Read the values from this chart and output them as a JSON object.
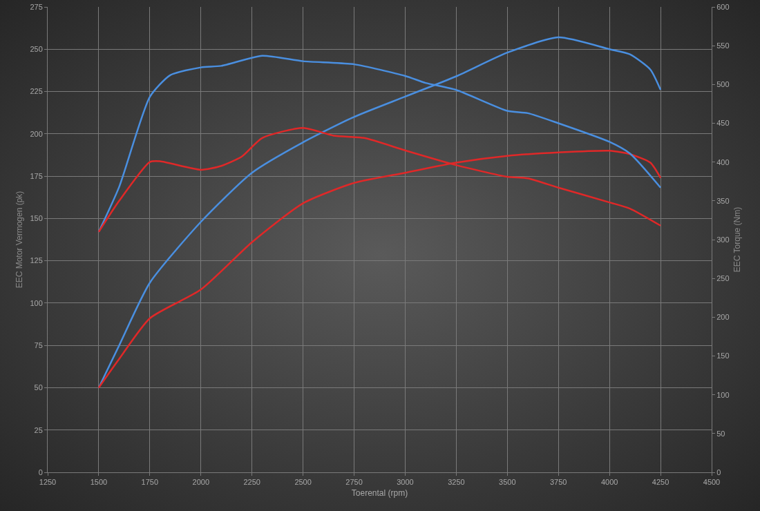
{
  "chart_data": {
    "type": "line",
    "xlabel": "Toerental (rpm)",
    "ylabel": "EEC Motor Vermogen (pk)",
    "y2label": "EEC Torque (Nm)",
    "xlim": [
      1250,
      4500
    ],
    "xticks": [
      1250,
      1500,
      1750,
      2000,
      2250,
      2500,
      2750,
      3000,
      3250,
      3500,
      3750,
      4000,
      4250,
      4500
    ],
    "ylim": [
      0,
      275
    ],
    "yticks": [
      0,
      25,
      50,
      75,
      100,
      125,
      150,
      175,
      200,
      225,
      250,
      275
    ],
    "y2lim": [
      0,
      600
    ],
    "y2ticks": [
      0,
      50,
      100,
      150,
      200,
      250,
      300,
      350,
      400,
      450,
      500,
      550,
      600
    ],
    "grid": true,
    "marker": "none",
    "line_style": "solid",
    "series": [
      {
        "color": "#4a8fe0",
        "x": [
          1500,
          1600,
          1750,
          2000,
          2250,
          2500,
          2750,
          3000,
          3250,
          3500,
          3750,
          4000,
          4100,
          4200,
          4250
        ],
        "values": [
          50,
          75,
          112,
          148,
          177,
          195,
          210,
          222,
          234,
          248,
          257,
          250,
          247,
          238,
          226
        ]
      },
      {
        "color": "#e02828",
        "x": [
          1500,
          1600,
          1750,
          2000,
          2250,
          2500,
          2750,
          3000,
          3250,
          3500,
          3750,
          4000,
          4100,
          4200,
          4250
        ],
        "values": [
          50,
          67,
          91,
          108,
          136,
          159,
          171,
          177,
          183,
          187,
          189,
          190,
          188,
          183,
          174
        ]
      },
      {
        "color": "#4a8fe0",
        "axis": "y2",
        "x": [
          1500,
          1600,
          1750,
          1850,
          2000,
          2100,
          2300,
          2500,
          2750,
          3000,
          3100,
          3250,
          3500,
          3600,
          3750,
          4000,
          4100,
          4250
        ],
        "values": [
          310,
          368,
          484,
          512,
          522,
          524,
          537,
          530,
          526,
          511,
          502,
          493,
          466,
          463,
          450,
          426,
          411,
          367
        ]
      },
      {
        "color": "#e02828",
        "axis": "y2",
        "x": [
          1500,
          1600,
          1750,
          1800,
          2000,
          2100,
          2200,
          2300,
          2500,
          2650,
          2800,
          3000,
          3250,
          3500,
          3600,
          3750,
          4000,
          4100,
          4250
        ],
        "values": [
          310,
          350,
          400,
          401,
          390,
          395,
          407,
          431,
          444,
          434,
          431,
          415,
          396,
          381,
          379,
          367,
          348,
          340,
          318
        ]
      }
    ]
  }
}
